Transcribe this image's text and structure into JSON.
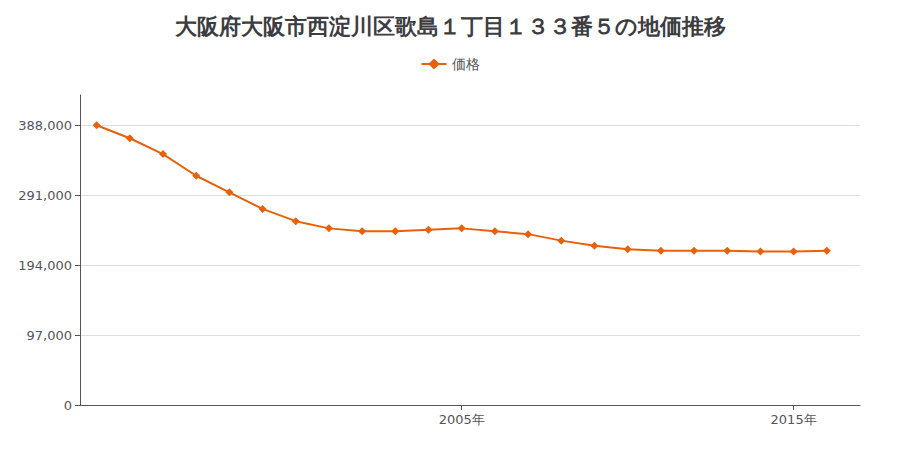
{
  "chart_data": {
    "type": "line",
    "title": "大阪府大阪市西淀川区歌島１丁目１３３番５の地価推移",
    "x": [
      1994,
      1995,
      1996,
      1997,
      1998,
      1999,
      2000,
      2001,
      2002,
      2003,
      2004,
      2005,
      2006,
      2007,
      2008,
      2009,
      2010,
      2011,
      2012,
      2013,
      2014,
      2015,
      2016
    ],
    "series": [
      {
        "name": "価格",
        "color": "#E8610A",
        "marker": "diamond",
        "values": [
          388000,
          370000,
          348000,
          318000,
          295000,
          272000,
          255000,
          245000,
          241000,
          241000,
          243000,
          245000,
          241000,
          237000,
          228000,
          221000,
          216000,
          214000,
          214000,
          214000,
          213000,
          213000,
          214000
        ]
      }
    ],
    "xlim": [
      1993.5,
      2017
    ],
    "xticks": [
      {
        "value": 2005,
        "label": "2005年"
      },
      {
        "value": 2015,
        "label": "2015年"
      }
    ],
    "ylim": [
      0,
      430000
    ],
    "yticks": [
      0,
      {
        "value": 97000,
        "label": "97,000"
      },
      {
        "value": 194000,
        "label": "194,000"
      },
      {
        "value": 291000,
        "label": "291,000"
      },
      {
        "value": 388000,
        "label": "388,000"
      }
    ],
    "grid": true,
    "legend": "top"
  }
}
